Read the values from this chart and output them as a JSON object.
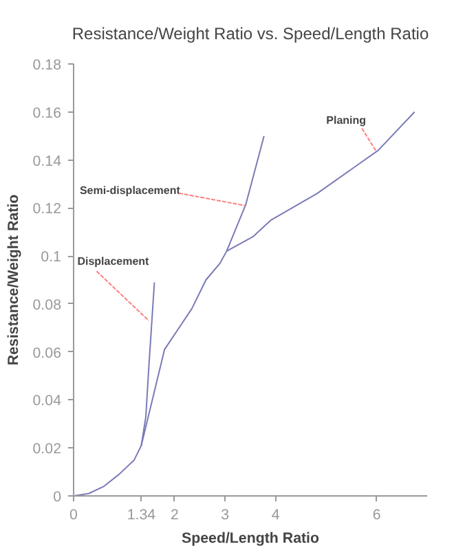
{
  "chart_data": {
    "type": "line",
    "title": "Resistance/Weight Ratio vs. Speed/Length Ratio",
    "xlabel": "Speed/Length Ratio",
    "ylabel": "Resistance/Weight Ratio",
    "xlim": [
      0,
      7
    ],
    "ylim": [
      0,
      0.18
    ],
    "xticks": [
      0,
      {
        "value": 1.34,
        "label": "1.34"
      },
      2,
      3,
      4,
      6
    ],
    "yticks": [
      0,
      0.02,
      0.04,
      0.06,
      0.08,
      {
        "value": 0.1,
        "label": "0.1"
      },
      0.12,
      0.14,
      0.16,
      0.18
    ],
    "grid": false,
    "line_style": "solid",
    "marker": "none",
    "series": [
      {
        "color": "#7a7ab8",
        "x": [
          0,
          0.3,
          0.6,
          0.9,
          1.2,
          1.34,
          1.43,
          1.49,
          1.6
        ],
        "values": [
          0,
          0.001,
          0.004,
          0.009,
          0.015,
          0.021,
          0.033,
          0.054,
          0.089
        ]
      },
      {
        "color": "#7a7ab8",
        "x": [
          1.34,
          1.57,
          1.8,
          2.34,
          2.62,
          2.9,
          3.03,
          3.41,
          3.77
        ],
        "values": [
          0.021,
          0.041,
          0.061,
          0.078,
          0.09,
          0.097,
          0.102,
          0.1215,
          0.15
        ]
      },
      {
        "color": "#7a7ab8",
        "x": [
          3.03,
          3.55,
          3.91,
          4.82,
          6.03,
          6.75
        ],
        "values": [
          0.102,
          0.108,
          0.115,
          0.126,
          0.144,
          0.16
        ]
      }
    ],
    "annotations": [
      {
        "text": "Displacement",
        "x": 1.49,
        "y": 0.073
      },
      {
        "text": "Semi-displacement",
        "x": 3.39,
        "y": 0.121
      },
      {
        "text": "Planing",
        "x": 5.98,
        "y": 0.144
      }
    ]
  }
}
